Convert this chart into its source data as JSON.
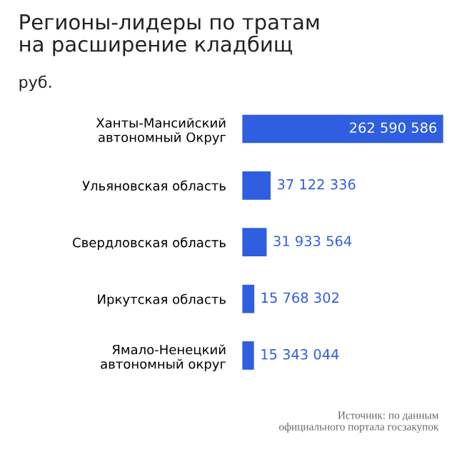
{
  "chart_data": {
    "type": "bar",
    "orientation": "horizontal",
    "title": "Регионы-лидеры по тратам\nна расширение кладбищ",
    "subtitle": "руб.",
    "categories": [
      "Ханты-Мансийский\nавтономный Округ",
      "Ульяновская область",
      "Свердловская область",
      "Иркутская область",
      "Ямало-Ненецкий\nавтономный округ"
    ],
    "values": [
      262590586,
      37122336,
      31933564,
      15768302,
      15343044
    ],
    "value_labels": [
      "262 590 586",
      "37 122 336",
      "31 933 564",
      "15 768 302",
      "15 343 044"
    ],
    "color": "#2f5fe0",
    "annotations": [
      "Источник: по данным\nофициального портала госзакупок"
    ],
    "grid": false,
    "legend": false
  }
}
